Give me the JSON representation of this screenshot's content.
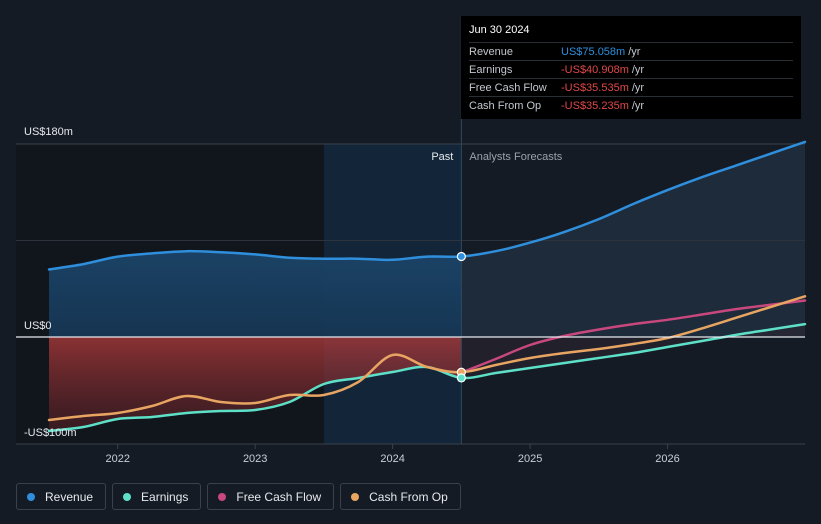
{
  "chart_data": {
    "type": "line",
    "y_labels": {
      "top": "US$180m",
      "zero": "US$0",
      "bottom": "-US$100m"
    },
    "ylim": [
      -100,
      180
    ],
    "xlim": [
      2021.5,
      2027.0
    ],
    "x_ticks": [
      {
        "label": "2022",
        "value": 2022
      },
      {
        "label": "2023",
        "value": 2023
      },
      {
        "label": "2024",
        "value": 2024
      },
      {
        "label": "2025",
        "value": 2025
      },
      {
        "label": "2026",
        "value": 2026
      }
    ],
    "past_label": "Past",
    "forecast_label": "Analysts Forecasts",
    "divider_x": 2024.5,
    "shade_start_x": 2023.5,
    "series": [
      {
        "name": "Revenue",
        "color": "#2f8fdc",
        "points": [
          [
            2021.5,
            63
          ],
          [
            2021.75,
            68
          ],
          [
            2022.0,
            75
          ],
          [
            2022.25,
            78
          ],
          [
            2022.5,
            80
          ],
          [
            2022.75,
            79
          ],
          [
            2023.0,
            77
          ],
          [
            2023.25,
            74
          ],
          [
            2023.5,
            73
          ],
          [
            2023.75,
            73
          ],
          [
            2024.0,
            72
          ],
          [
            2024.25,
            75
          ],
          [
            2024.5,
            75.06
          ],
          [
            2024.75,
            80
          ],
          [
            2025.0,
            88
          ],
          [
            2025.25,
            98
          ],
          [
            2025.5,
            110
          ],
          [
            2025.75,
            124
          ],
          [
            2026.0,
            137
          ],
          [
            2026.25,
            149
          ],
          [
            2026.5,
            160
          ],
          [
            2026.75,
            171
          ],
          [
            2027.0,
            182
          ]
        ]
      },
      {
        "name": "Earnings",
        "color": "#5ee0c8",
        "points": [
          [
            2021.5,
            -94
          ],
          [
            2021.75,
            -90
          ],
          [
            2022.0,
            -82
          ],
          [
            2022.25,
            -80
          ],
          [
            2022.5,
            -76
          ],
          [
            2022.75,
            -74
          ],
          [
            2023.0,
            -73
          ],
          [
            2023.25,
            -65
          ],
          [
            2023.5,
            -47
          ],
          [
            2023.75,
            -41
          ],
          [
            2024.0,
            -35
          ],
          [
            2024.25,
            -30
          ],
          [
            2024.5,
            -40.91
          ],
          [
            2024.75,
            -36
          ],
          [
            2025.0,
            -31
          ],
          [
            2025.25,
            -26
          ],
          [
            2025.5,
            -21
          ],
          [
            2025.75,
            -16
          ],
          [
            2026.0,
            -10
          ],
          [
            2026.25,
            -4
          ],
          [
            2026.5,
            2
          ],
          [
            2026.75,
            7
          ],
          [
            2027.0,
            12
          ]
        ]
      },
      {
        "name": "Free Cash Flow",
        "color": "#c8487e",
        "points": [
          [
            2024.5,
            -35.5
          ],
          [
            2024.75,
            -22
          ],
          [
            2025.0,
            -8
          ],
          [
            2025.25,
            1
          ],
          [
            2025.5,
            7
          ],
          [
            2025.75,
            12
          ],
          [
            2026.0,
            16
          ],
          [
            2026.25,
            21
          ],
          [
            2026.5,
            26
          ],
          [
            2026.75,
            30
          ],
          [
            2027.0,
            34
          ]
        ]
      },
      {
        "name": "Cash From Op",
        "color": "#e8a562",
        "points": [
          [
            2021.5,
            -83
          ],
          [
            2021.75,
            -79
          ],
          [
            2022.0,
            -76
          ],
          [
            2022.25,
            -69
          ],
          [
            2022.5,
            -59
          ],
          [
            2022.75,
            -65
          ],
          [
            2023.0,
            -66
          ],
          [
            2023.25,
            -58
          ],
          [
            2023.5,
            -58
          ],
          [
            2023.75,
            -45
          ],
          [
            2024.0,
            -18
          ],
          [
            2024.25,
            -30
          ],
          [
            2024.5,
            -35.24
          ],
          [
            2024.75,
            -28
          ],
          [
            2025.0,
            -21
          ],
          [
            2025.25,
            -16
          ],
          [
            2025.5,
            -12
          ],
          [
            2025.75,
            -7
          ],
          [
            2026.0,
            -1
          ],
          [
            2026.25,
            8
          ],
          [
            2026.5,
            18
          ],
          [
            2026.75,
            28
          ],
          [
            2027.0,
            38
          ]
        ]
      }
    ]
  },
  "tooltip": {
    "date": "Jun 30 2024",
    "unit": "/yr",
    "rows": [
      {
        "label": "Revenue",
        "value": "US$75.058m",
        "color": "#2f8fdc"
      },
      {
        "label": "Earnings",
        "value": "-US$40.908m",
        "color": "#e04848"
      },
      {
        "label": "Free Cash Flow",
        "value": "-US$35.535m",
        "color": "#e04848"
      },
      {
        "label": "Cash From Op",
        "value": "-US$35.235m",
        "color": "#e04848"
      }
    ]
  },
  "legend": [
    {
      "label": "Revenue",
      "color": "#2f8fdc"
    },
    {
      "label": "Earnings",
      "color": "#5ee0c8"
    },
    {
      "label": "Free Cash Flow",
      "color": "#c8487e"
    },
    {
      "label": "Cash From Op",
      "color": "#e8a562"
    }
  ]
}
